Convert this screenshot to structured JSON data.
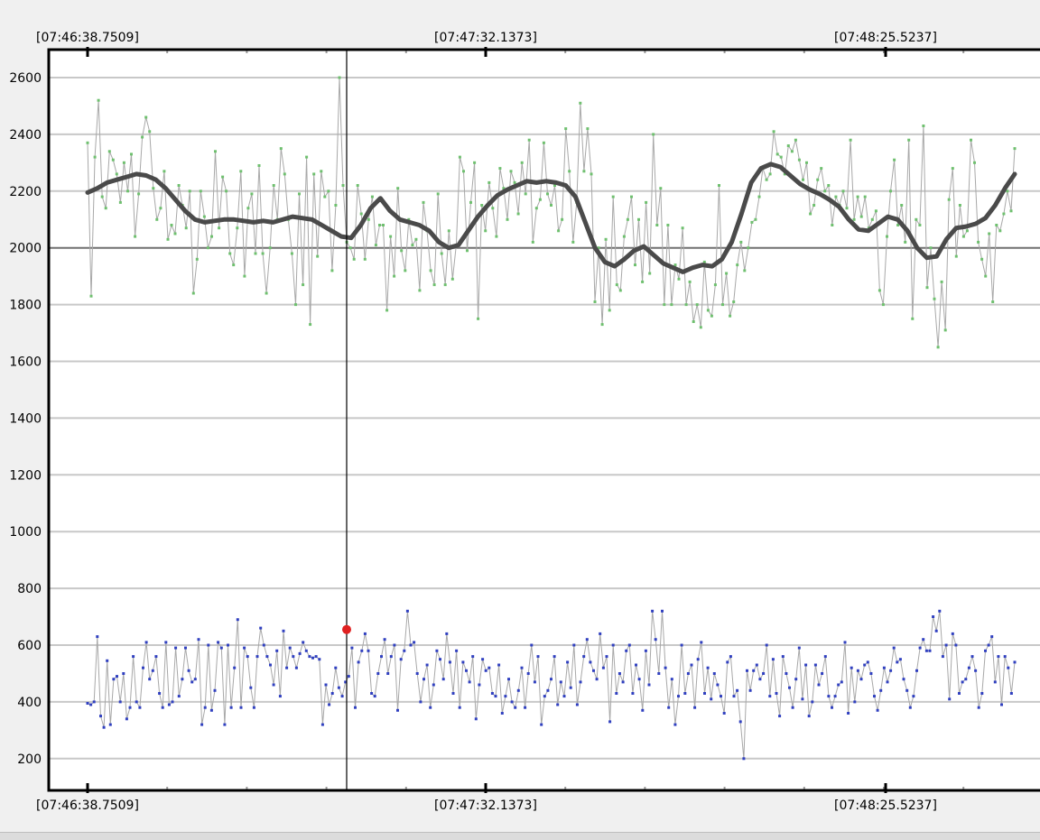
{
  "chart_data": {
    "type": "line",
    "x_ticks": [
      "[07:46:38.7509]",
      "[07:47:32.1373]",
      "[07:48:25.5237]"
    ],
    "y_ticks": [
      "2600",
      "2400",
      "2200",
      "2000",
      "1800",
      "1600",
      "1400",
      "1200",
      "1000",
      "800",
      "600",
      "400",
      "200"
    ],
    "ylim": [
      150,
      2700
    ],
    "grid": true,
    "reference_line": 2000,
    "cursor_time": "[07:47:13.18]",
    "cursor_marker_value": 655,
    "series": [
      {
        "color": "#6fc06f",
        "style": "thin-line-with-markers",
        "values": [
          2370,
          1830,
          2320,
          2520,
          2180,
          2140,
          2340,
          2310,
          2260,
          2160,
          2300,
          2200,
          2330,
          2040,
          2190,
          2390,
          2460,
          2410,
          2210,
          2100,
          2140,
          2270,
          2030,
          2080,
          2050,
          2220,
          2150,
          2070,
          2200,
          1840,
          1960,
          2200,
          2110,
          2000,
          2040,
          2340,
          2070,
          2250,
          2200,
          1980,
          1940,
          2070,
          2270,
          1900,
          2140,
          2190,
          1980,
          2290,
          1980,
          1840,
          2000,
          2220,
          2100,
          2350,
          2260,
          2100,
          1980,
          1800,
          2190,
          1870,
          2320,
          1730,
          2260,
          1970,
          2270,
          2180,
          2200,
          1920,
          2150,
          2600,
          2220,
          2020,
          2000,
          1960,
          2220,
          2120,
          1960,
          2100,
          2180,
          2010,
          2080,
          2080,
          1780,
          2040,
          1900,
          2210,
          1990,
          1920,
          2100,
          2010,
          2030,
          1850,
          2160,
          2060,
          1920,
          1870,
          2190,
          1980,
          1870,
          2060,
          1890,
          2010,
          2320,
          2270,
          1990,
          2160,
          2300,
          1750,
          2150,
          2060,
          2230,
          2140,
          2040,
          2280,
          2210,
          2100,
          2270,
          2230,
          2120,
          2300,
          2190,
          2380,
          2020,
          2140,
          2170,
          2370,
          2190,
          2150,
          2220,
          2060,
          2100,
          2420,
          2270,
          2020,
          2160,
          2510,
          2270,
          2420,
          2260,
          1810,
          2000,
          1730,
          2030,
          1780,
          2180,
          1870,
          1850,
          2040,
          2100,
          2180,
          1940,
          2100,
          1880,
          2160,
          1910,
          2400,
          2080,
          2210,
          1800,
          2080,
          1800,
          1940,
          1890,
          2070,
          1800,
          1880,
          1740,
          1800,
          1720,
          1950,
          1780,
          1760,
          1870,
          2220,
          1800,
          1910,
          1760,
          1810,
          1940,
          2020,
          1920,
          2000,
          2090,
          2100,
          2180,
          2280,
          2240,
          2260,
          2410,
          2330,
          2320,
          2260,
          2360,
          2340,
          2380,
          2310,
          2240,
          2300,
          2120,
          2150,
          2240,
          2280,
          2200,
          2220,
          2080,
          2180,
          2150,
          2200,
          2140,
          2380,
          2100,
          2180,
          2110,
          2180,
          2070,
          2100,
          2130,
          1850,
          1800,
          2040,
          2200,
          2310,
          2080,
          2150,
          2020,
          2380,
          1750,
          2100,
          2080,
          2430,
          1860,
          2000,
          1820,
          1650,
          1880,
          1710,
          2170,
          2280,
          1970,
          2150,
          2040,
          2060,
          2380,
          2300,
          2020,
          1960,
          1900,
          2050,
          1810,
          2080,
          2060,
          2120,
          2200,
          2130,
          2350
        ]
      },
      {
        "color": "#4a4a4a",
        "style": "smoothed-thick",
        "values": [
          2195,
          2210,
          2230,
          2240,
          2250,
          2260,
          2255,
          2240,
          2210,
          2170,
          2130,
          2100,
          2090,
          2095,
          2100,
          2100,
          2095,
          2090,
          2095,
          2090,
          2100,
          2110,
          2105,
          2100,
          2080,
          2060,
          2040,
          2035,
          2080,
          2140,
          2175,
          2130,
          2100,
          2090,
          2080,
          2060,
          2020,
          2000,
          2010,
          2060,
          2110,
          2150,
          2185,
          2205,
          2220,
          2235,
          2230,
          2235,
          2230,
          2220,
          2180,
          2090,
          2000,
          1950,
          1935,
          1960,
          1990,
          2005,
          1975,
          1945,
          1930,
          1915,
          1930,
          1940,
          1935,
          1960,
          2020,
          2120,
          2230,
          2280,
          2295,
          2285,
          2255,
          2225,
          2205,
          2190,
          2170,
          2145,
          2100,
          2065,
          2060,
          2085,
          2110,
          2100,
          2060,
          2000,
          1965,
          1970,
          2030,
          2070,
          2075,
          2085,
          2105,
          2150,
          2210,
          2260
        ]
      },
      {
        "color": "#3040c0",
        "style": "thin-line-with-markers",
        "values": [
          395,
          390,
          400,
          630,
          350,
          310,
          545,
          320,
          480,
          490,
          400,
          500,
          340,
          380,
          560,
          400,
          380,
          520,
          610,
          480,
          510,
          560,
          430,
          380,
          610,
          390,
          400,
          590,
          420,
          480,
          590,
          510,
          470,
          480,
          620,
          320,
          380,
          600,
          370,
          440,
          610,
          590,
          320,
          600,
          380,
          520,
          690,
          380,
          590,
          560,
          450,
          380,
          560,
          660,
          600,
          560,
          530,
          460,
          580,
          420,
          650,
          520,
          590,
          560,
          520,
          570,
          610,
          580,
          560,
          555,
          560,
          550,
          320,
          460,
          390,
          430,
          520,
          450,
          420,
          470,
          490,
          590,
          380,
          540,
          580,
          640,
          580,
          430,
          420,
          500,
          560,
          620,
          500,
          560,
          600,
          370,
          550,
          580,
          720,
          600,
          610,
          500,
          400,
          480,
          530,
          380,
          460,
          580,
          550,
          480,
          640,
          540,
          430,
          580,
          380,
          540,
          510,
          470,
          560,
          340,
          460,
          550,
          510,
          520,
          430,
          420,
          530,
          360,
          420,
          480,
          400,
          380,
          440,
          520,
          380,
          500,
          600,
          470,
          560,
          320,
          420,
          440,
          480,
          560,
          390,
          470,
          420,
          540,
          450,
          600,
          390,
          470,
          560,
          620,
          540,
          510,
          480,
          640,
          520,
          560,
          330,
          600,
          430,
          500,
          470,
          580,
          600,
          430,
          530,
          480,
          370,
          580,
          460,
          720,
          620,
          500,
          720,
          520,
          380,
          480,
          320,
          420,
          600,
          430,
          500,
          530,
          380,
          550,
          610,
          430,
          520,
          410,
          500,
          460,
          420,
          360,
          540,
          560,
          420,
          440,
          330,
          200,
          510,
          440,
          510,
          530,
          480,
          500,
          600,
          420,
          550,
          430,
          350,
          560,
          500,
          450,
          380,
          480,
          590,
          410,
          530,
          350,
          400,
          530,
          460,
          500,
          560,
          420,
          380,
          420,
          460,
          470,
          610,
          360,
          520,
          400,
          510,
          480,
          530,
          540,
          500,
          420,
          370,
          440,
          520,
          470,
          510,
          590,
          540,
          550,
          480,
          440,
          380,
          420,
          510,
          590,
          620,
          580,
          580,
          700,
          650,
          720,
          560,
          600,
          410,
          640,
          600,
          430,
          470,
          480,
          520,
          560,
          510,
          380,
          430,
          580,
          600,
          630,
          470,
          560,
          390,
          560,
          520,
          430,
          540
        ]
      }
    ]
  }
}
